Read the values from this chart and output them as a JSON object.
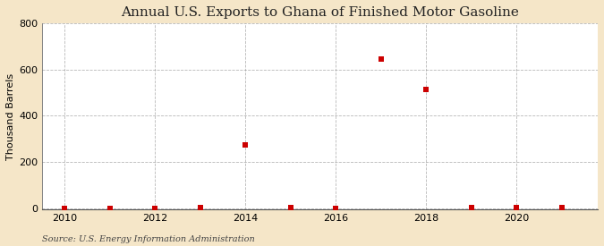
{
  "title": "Annual U.S. Exports to Ghana of Finished Motor Gasoline",
  "ylabel": "Thousand Barrels",
  "source": "Source: U.S. Energy Information Administration",
  "background_color": "#f5e6c8",
  "plot_bg_color": "#ffffff",
  "years": [
    2010,
    2011,
    2012,
    2013,
    2014,
    2015,
    2016,
    2017,
    2018,
    2019,
    2020,
    2021
  ],
  "values": [
    0,
    0,
    0,
    2,
    275,
    3,
    0,
    645,
    515,
    2,
    2,
    2
  ],
  "xlim": [
    2009.5,
    2021.8
  ],
  "ylim": [
    -5,
    800
  ],
  "yticks": [
    0,
    200,
    400,
    600,
    800
  ],
  "xticks": [
    2010,
    2012,
    2014,
    2016,
    2018,
    2020
  ],
  "marker_color": "#cc0000",
  "marker_size": 5,
  "grid_color": "#999999",
  "title_fontsize": 11,
  "label_fontsize": 8,
  "tick_fontsize": 8,
  "source_fontsize": 7
}
